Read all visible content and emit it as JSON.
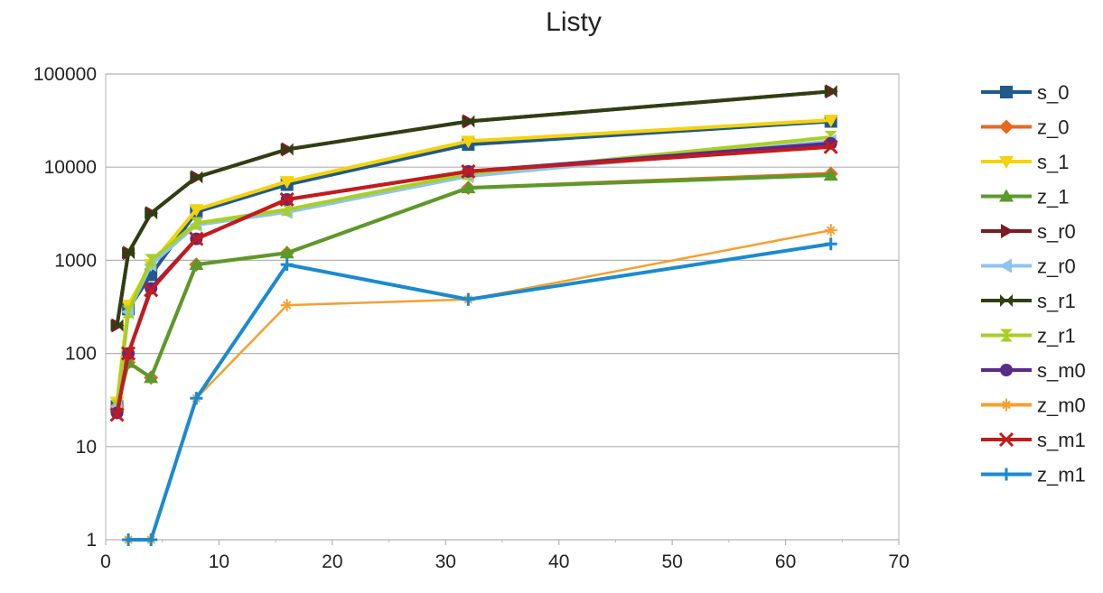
{
  "chart_data": {
    "type": "line",
    "title": "Listy",
    "xlabel": "",
    "ylabel": "",
    "xlim": [
      0,
      70
    ],
    "xticks": [
      0,
      10,
      20,
      30,
      40,
      50,
      60,
      70
    ],
    "yscale": "log",
    "ylim": [
      1,
      100000
    ],
    "yticks": [
      1,
      10,
      100,
      1000,
      10000,
      100000
    ],
    "grid": "horizontal",
    "legend": "right",
    "series": [
      {
        "name": "s_0",
        "color": "#1f5a8c",
        "marker": "square",
        "x": [
          1,
          2,
          4,
          8,
          16,
          32,
          64
        ],
        "y": [
          27,
          300,
          700,
          3300,
          6500,
          17500,
          31000
        ]
      },
      {
        "name": "z_0",
        "color": "#e8671c",
        "marker": "diamond",
        "x": [
          1,
          2,
          4,
          8,
          16,
          32,
          64
        ],
        "y": [
          27,
          80,
          55,
          900,
          1200,
          6000,
          8500
        ]
      },
      {
        "name": "s_1",
        "color": "#f5d20c",
        "marker": "triangle-down",
        "x": [
          1,
          2,
          4,
          8,
          16,
          32,
          64
        ],
        "y": [
          30,
          330,
          900,
          3500,
          7000,
          19000,
          32000
        ]
      },
      {
        "name": "z_1",
        "color": "#5a9a2b",
        "marker": "triangle-up",
        "x": [
          1,
          2,
          4,
          8,
          16,
          32,
          64
        ],
        "y": [
          27,
          80,
          55,
          900,
          1200,
          6000,
          8200
        ]
      },
      {
        "name": "s_r0",
        "color": "#7d1a22",
        "marker": "triangle-right",
        "x": [
          1,
          2,
          4,
          8,
          16,
          32,
          64
        ],
        "y": [
          200,
          1200,
          3200,
          7800,
          15500,
          31000,
          65000
        ]
      },
      {
        "name": "z_r0",
        "color": "#8fc3ec",
        "marker": "triangle-left",
        "x": [
          1,
          2,
          4,
          8,
          16,
          32,
          64
        ],
        "y": [
          27,
          280,
          900,
          2400,
          3300,
          8000,
          19000
        ]
      },
      {
        "name": "s_r1",
        "color": "#2f3f12",
        "marker": "bowtie",
        "x": [
          1,
          2,
          4,
          8,
          16,
          32,
          64
        ],
        "y": [
          200,
          1200,
          3200,
          7800,
          15500,
          31000,
          65000
        ]
      },
      {
        "name": "z_r1",
        "color": "#a9cf22",
        "marker": "hourglass",
        "x": [
          1,
          2,
          4,
          8,
          16,
          32,
          64
        ],
        "y": [
          27,
          280,
          1000,
          2500,
          3500,
          8500,
          21000
        ]
      },
      {
        "name": "s_m0",
        "color": "#5a2a86",
        "marker": "circle",
        "x": [
          1,
          2,
          4,
          8,
          16,
          32,
          64
        ],
        "y": [
          23,
          100,
          500,
          1700,
          4500,
          9000,
          18000
        ]
      },
      {
        "name": "z_m0",
        "color": "#f5a030",
        "marker": "star",
        "x": [
          2,
          4,
          8,
          16,
          32,
          64
        ],
        "y": [
          1,
          1,
          33,
          330,
          380,
          2100
        ]
      },
      {
        "name": "s_m1",
        "color": "#c41a1a",
        "marker": "x",
        "x": [
          1,
          2,
          4,
          8,
          16,
          32,
          64
        ],
        "y": [
          22,
          100,
          480,
          1700,
          4500,
          9000,
          16500
        ]
      },
      {
        "name": "z_m1",
        "color": "#1a8ad0",
        "marker": "plus",
        "x": [
          2,
          4,
          8,
          16,
          32,
          64
        ],
        "y": [
          1,
          1,
          33,
          900,
          380,
          1500
        ]
      }
    ]
  }
}
